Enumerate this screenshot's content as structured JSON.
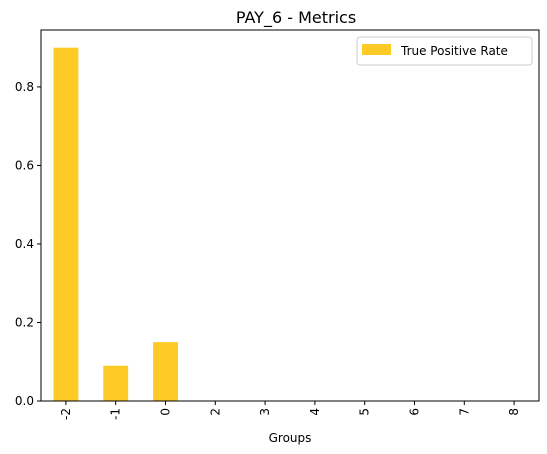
{
  "chart_data": {
    "type": "bar",
    "title": "PAY_6 - Metrics",
    "xlabel": "Groups",
    "ylabel": "",
    "categories": [
      "-2",
      "-1",
      "0",
      "2",
      "3",
      "4",
      "5",
      "6",
      "7",
      "8"
    ],
    "series": [
      {
        "name": "True Positive Rate",
        "values": [
          0.9,
          0.09,
          0.15,
          0,
          0,
          0,
          0,
          0,
          0,
          0
        ],
        "color": "#fdca26"
      }
    ],
    "ylim": [
      0,
      0.945
    ],
    "yticks": [
      0.0,
      0.2,
      0.4,
      0.6,
      0.8
    ],
    "ytick_labels": [
      "0.0",
      "0.2",
      "0.4",
      "0.6",
      "0.8"
    ],
    "grid": false,
    "legend_position": "top-right"
  }
}
